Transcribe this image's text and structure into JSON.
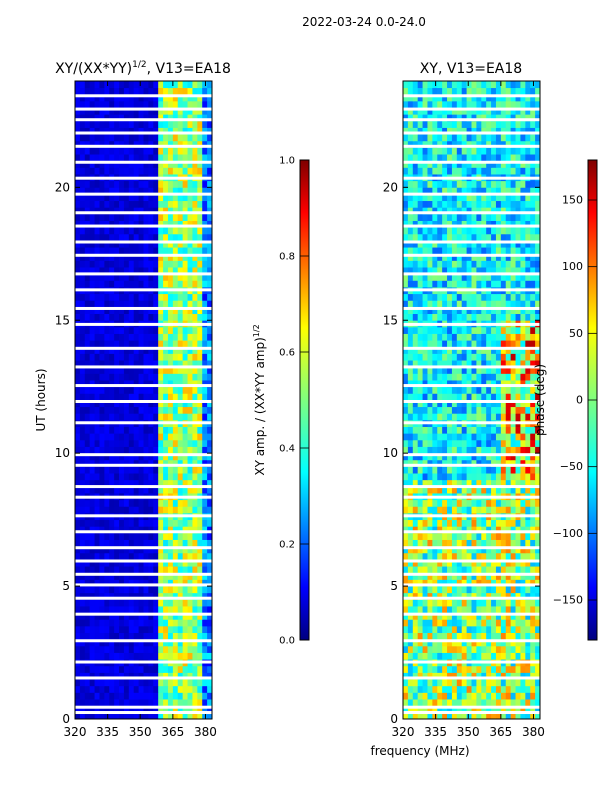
{
  "suptitle": "2022-03-24 0.0-24.0",
  "shared_xlabel": "frequency (MHz)",
  "colors": {
    "jet": [
      "#00007f",
      "#0000ff",
      "#007fff",
      "#00ffff",
      "#7fff7f",
      "#ffff00",
      "#ff7f00",
      "#ff0000",
      "#7f0000"
    ],
    "background": "#ffffff",
    "axis": "#000000"
  },
  "chart_data": [
    {
      "type": "heatmap",
      "title": "XY/(XX*YY)",
      "title_sup": "1/2",
      "title_suffix": ", V13=EA18",
      "xlabel": "",
      "ylabel": "UT (hours)",
      "xlim": [
        320,
        383
      ],
      "ylim": [
        0,
        24
      ],
      "xticks": [
        320,
        335,
        350,
        365,
        380
      ],
      "yticks": [
        0,
        5,
        10,
        15,
        20
      ],
      "description_value_range": [
        0,
        1
      ],
      "bright_channels_mhz": [
        [
          358,
          362
        ],
        [
          364,
          367
        ],
        [
          369,
          372
        ],
        [
          375,
          378
        ]
      ],
      "gap_hours": [
        0.3,
        0.5,
        1.6,
        2.2,
        3.0,
        4.0,
        4.6,
        5.1,
        5.5,
        6.0,
        6.5,
        7.1,
        7.7,
        8.4,
        8.8,
        9.6,
        10.0,
        11.2,
        12.0,
        12.6,
        13.3,
        14.0,
        14.9,
        15.5,
        16.2,
        16.8,
        17.5,
        18.0,
        18.6,
        19.1,
        19.8,
        20.4,
        21.0,
        21.6,
        22.1,
        22.6,
        23.0,
        23.5
      ],
      "colorbar": {
        "label": "XY amp. / (XX*YY amp)",
        "label_sup": "1/2",
        "range": [
          0.0,
          1.0
        ],
        "ticks": [
          "0.0",
          "0.2",
          "0.4",
          "0.6",
          "0.8",
          "1.0"
        ]
      }
    },
    {
      "type": "heatmap",
      "title": "XY, V13=EA18",
      "xlabel": "frequency (MHz)",
      "ylabel": "",
      "xlim": [
        320,
        383
      ],
      "ylim": [
        0,
        24
      ],
      "xticks": [
        320,
        335,
        350,
        365,
        380
      ],
      "yticks": [
        0,
        5,
        10,
        15,
        20
      ],
      "description_value_range": [
        -180,
        180
      ],
      "gap_hours": [
        0.3,
        0.5,
        1.6,
        2.2,
        3.0,
        4.0,
        4.6,
        5.1,
        5.5,
        6.0,
        6.5,
        7.1,
        7.7,
        8.4,
        8.8,
        9.6,
        10.0,
        11.2,
        12.0,
        12.6,
        13.3,
        14.0,
        14.9,
        15.5,
        16.2,
        16.8,
        17.5,
        18.0,
        18.6,
        19.1,
        19.8,
        20.4,
        21.0,
        21.6,
        22.1,
        22.6,
        23.0,
        23.5
      ],
      "colorbar": {
        "label": "phase (deg)",
        "range": [
          -180,
          180
        ],
        "ticks": [
          "150",
          "100",
          "50",
          "0",
          "−50",
          "−100",
          "−150"
        ],
        "tick_values": [
          150,
          100,
          50,
          0,
          -50,
          -100,
          -150
        ]
      }
    }
  ]
}
